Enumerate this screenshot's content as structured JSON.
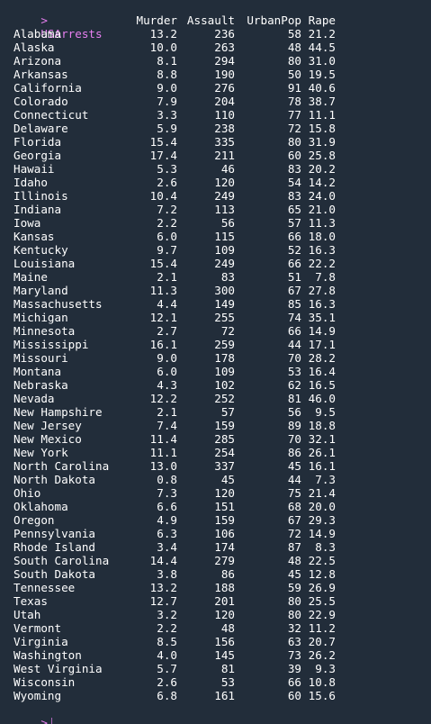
{
  "console": {
    "prompt": ">",
    "command": "USArrests",
    "columns": [
      "Murder",
      "Assault",
      "UrbanPop",
      "Rape"
    ]
  },
  "rows": [
    {
      "name": "Alabama",
      "murder": "13.2",
      "assault": "236",
      "urbanpop": "58",
      "rape": "21.2"
    },
    {
      "name": "Alaska",
      "murder": "10.0",
      "assault": "263",
      "urbanpop": "48",
      "rape": "44.5"
    },
    {
      "name": "Arizona",
      "murder": "8.1",
      "assault": "294",
      "urbanpop": "80",
      "rape": "31.0"
    },
    {
      "name": "Arkansas",
      "murder": "8.8",
      "assault": "190",
      "urbanpop": "50",
      "rape": "19.5"
    },
    {
      "name": "California",
      "murder": "9.0",
      "assault": "276",
      "urbanpop": "91",
      "rape": "40.6"
    },
    {
      "name": "Colorado",
      "murder": "7.9",
      "assault": "204",
      "urbanpop": "78",
      "rape": "38.7"
    },
    {
      "name": "Connecticut",
      "murder": "3.3",
      "assault": "110",
      "urbanpop": "77",
      "rape": "11.1"
    },
    {
      "name": "Delaware",
      "murder": "5.9",
      "assault": "238",
      "urbanpop": "72",
      "rape": "15.8"
    },
    {
      "name": "Florida",
      "murder": "15.4",
      "assault": "335",
      "urbanpop": "80",
      "rape": "31.9"
    },
    {
      "name": "Georgia",
      "murder": "17.4",
      "assault": "211",
      "urbanpop": "60",
      "rape": "25.8"
    },
    {
      "name": "Hawaii",
      "murder": "5.3",
      "assault": "46",
      "urbanpop": "83",
      "rape": "20.2"
    },
    {
      "name": "Idaho",
      "murder": "2.6",
      "assault": "120",
      "urbanpop": "54",
      "rape": "14.2"
    },
    {
      "name": "Illinois",
      "murder": "10.4",
      "assault": "249",
      "urbanpop": "83",
      "rape": "24.0"
    },
    {
      "name": "Indiana",
      "murder": "7.2",
      "assault": "113",
      "urbanpop": "65",
      "rape": "21.0"
    },
    {
      "name": "Iowa",
      "murder": "2.2",
      "assault": "56",
      "urbanpop": "57",
      "rape": "11.3"
    },
    {
      "name": "Kansas",
      "murder": "6.0",
      "assault": "115",
      "urbanpop": "66",
      "rape": "18.0"
    },
    {
      "name": "Kentucky",
      "murder": "9.7",
      "assault": "109",
      "urbanpop": "52",
      "rape": "16.3"
    },
    {
      "name": "Louisiana",
      "murder": "15.4",
      "assault": "249",
      "urbanpop": "66",
      "rape": "22.2"
    },
    {
      "name": "Maine",
      "murder": "2.1",
      "assault": "83",
      "urbanpop": "51",
      "rape": "7.8"
    },
    {
      "name": "Maryland",
      "murder": "11.3",
      "assault": "300",
      "urbanpop": "67",
      "rape": "27.8"
    },
    {
      "name": "Massachusetts",
      "murder": "4.4",
      "assault": "149",
      "urbanpop": "85",
      "rape": "16.3"
    },
    {
      "name": "Michigan",
      "murder": "12.1",
      "assault": "255",
      "urbanpop": "74",
      "rape": "35.1"
    },
    {
      "name": "Minnesota",
      "murder": "2.7",
      "assault": "72",
      "urbanpop": "66",
      "rape": "14.9"
    },
    {
      "name": "Mississippi",
      "murder": "16.1",
      "assault": "259",
      "urbanpop": "44",
      "rape": "17.1"
    },
    {
      "name": "Missouri",
      "murder": "9.0",
      "assault": "178",
      "urbanpop": "70",
      "rape": "28.2"
    },
    {
      "name": "Montana",
      "murder": "6.0",
      "assault": "109",
      "urbanpop": "53",
      "rape": "16.4"
    },
    {
      "name": "Nebraska",
      "murder": "4.3",
      "assault": "102",
      "urbanpop": "62",
      "rape": "16.5"
    },
    {
      "name": "Nevada",
      "murder": "12.2",
      "assault": "252",
      "urbanpop": "81",
      "rape": "46.0"
    },
    {
      "name": "New Hampshire",
      "murder": "2.1",
      "assault": "57",
      "urbanpop": "56",
      "rape": "9.5"
    },
    {
      "name": "New Jersey",
      "murder": "7.4",
      "assault": "159",
      "urbanpop": "89",
      "rape": "18.8"
    },
    {
      "name": "New Mexico",
      "murder": "11.4",
      "assault": "285",
      "urbanpop": "70",
      "rape": "32.1"
    },
    {
      "name": "New York",
      "murder": "11.1",
      "assault": "254",
      "urbanpop": "86",
      "rape": "26.1"
    },
    {
      "name": "North Carolina",
      "murder": "13.0",
      "assault": "337",
      "urbanpop": "45",
      "rape": "16.1"
    },
    {
      "name": "North Dakota",
      "murder": "0.8",
      "assault": "45",
      "urbanpop": "44",
      "rape": "7.3"
    },
    {
      "name": "Ohio",
      "murder": "7.3",
      "assault": "120",
      "urbanpop": "75",
      "rape": "21.4"
    },
    {
      "name": "Oklahoma",
      "murder": "6.6",
      "assault": "151",
      "urbanpop": "68",
      "rape": "20.0"
    },
    {
      "name": "Oregon",
      "murder": "4.9",
      "assault": "159",
      "urbanpop": "67",
      "rape": "29.3"
    },
    {
      "name": "Pennsylvania",
      "murder": "6.3",
      "assault": "106",
      "urbanpop": "72",
      "rape": "14.9"
    },
    {
      "name": "Rhode Island",
      "murder": "3.4",
      "assault": "174",
      "urbanpop": "87",
      "rape": "8.3"
    },
    {
      "name": "South Carolina",
      "murder": "14.4",
      "assault": "279",
      "urbanpop": "48",
      "rape": "22.5"
    },
    {
      "name": "South Dakota",
      "murder": "3.8",
      "assault": "86",
      "urbanpop": "45",
      "rape": "12.8"
    },
    {
      "name": "Tennessee",
      "murder": "13.2",
      "assault": "188",
      "urbanpop": "59",
      "rape": "26.9"
    },
    {
      "name": "Texas",
      "murder": "12.7",
      "assault": "201",
      "urbanpop": "80",
      "rape": "25.5"
    },
    {
      "name": "Utah",
      "murder": "3.2",
      "assault": "120",
      "urbanpop": "80",
      "rape": "22.9"
    },
    {
      "name": "Vermont",
      "murder": "2.2",
      "assault": "48",
      "urbanpop": "32",
      "rape": "11.2"
    },
    {
      "name": "Virginia",
      "murder": "8.5",
      "assault": "156",
      "urbanpop": "63",
      "rape": "20.7"
    },
    {
      "name": "Washington",
      "murder": "4.0",
      "assault": "145",
      "urbanpop": "73",
      "rape": "26.2"
    },
    {
      "name": "West Virginia",
      "murder": "5.7",
      "assault": "81",
      "urbanpop": "39",
      "rape": "9.3"
    },
    {
      "name": "Wisconsin",
      "murder": "2.6",
      "assault": "53",
      "urbanpop": "66",
      "rape": "10.8"
    },
    {
      "name": "Wyoming",
      "murder": "6.8",
      "assault": "161",
      "urbanpop": "60",
      "rape": "15.6"
    }
  ],
  "colors": {
    "background": "#222d3a",
    "prompt": "#e77ff0",
    "text": "#ffffff"
  }
}
